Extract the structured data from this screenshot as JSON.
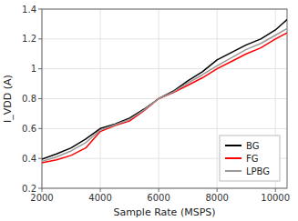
{
  "chart_data": {
    "type": "line",
    "x_label": "Sample Rate (MSPS)",
    "y_label": "I_VDD (A)",
    "x": [
      2000,
      2500,
      3000,
      3500,
      4000,
      4500,
      5000,
      5500,
      6000,
      6500,
      7000,
      7500,
      8000,
      8500,
      9000,
      9500,
      10000,
      10400
    ],
    "series": [
      {
        "name": "BG",
        "color": "#000000",
        "values": [
          0.395,
          0.43,
          0.47,
          0.53,
          0.6,
          0.63,
          0.67,
          0.73,
          0.8,
          0.85,
          0.92,
          0.98,
          1.06,
          1.11,
          1.16,
          1.2,
          1.26,
          1.33
        ]
      },
      {
        "name": "FG",
        "color": "#ff0000",
        "values": [
          0.37,
          0.39,
          0.42,
          0.47,
          0.58,
          0.62,
          0.65,
          0.72,
          0.8,
          0.84,
          0.89,
          0.94,
          1.0,
          1.05,
          1.1,
          1.14,
          1.2,
          1.24
        ]
      },
      {
        "name": "LPBG",
        "color": "#999999",
        "values": [
          0.38,
          0.41,
          0.45,
          0.505,
          0.59,
          0.625,
          0.66,
          0.725,
          0.8,
          0.845,
          0.905,
          0.96,
          1.02,
          1.075,
          1.13,
          1.17,
          1.225,
          1.27
        ]
      }
    ],
    "xlim": [
      2000,
      10400
    ],
    "ylim": [
      0.2,
      1.4
    ],
    "xticks": [
      2000,
      4000,
      6000,
      8000,
      10000
    ],
    "yticks": [
      0.2,
      0.4,
      0.6,
      0.8,
      1.0,
      1.2,
      1.4
    ],
    "grid": true,
    "legend": "lower right"
  }
}
